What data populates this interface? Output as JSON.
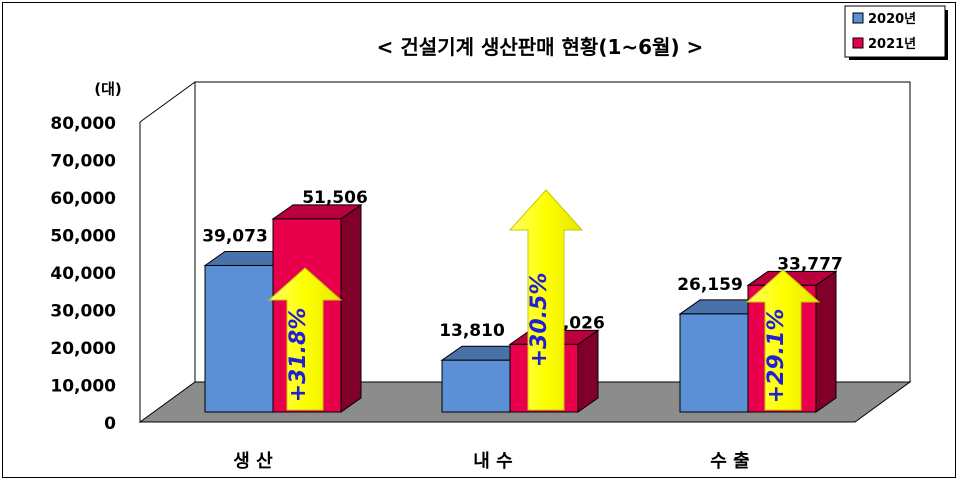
{
  "chart_data": {
    "type": "bar",
    "title": "< 건설기계 생산판매 현황(1~6월) >",
    "ylabel": "(대)",
    "ylim": [
      0,
      80000
    ],
    "yticks": [
      "80,000",
      "70,000",
      "60,000",
      "50,000",
      "40,000",
      "30,000",
      "20,000",
      "10,000",
      "0"
    ],
    "categories": [
      "생 산",
      "내 수",
      "수 출"
    ],
    "series": [
      {
        "name": "2020년",
        "color": "#5b8fd6",
        "values": [
          39073,
          13810,
          26159
        ],
        "labels": [
          "39,073",
          "13,810",
          "26,159"
        ]
      },
      {
        "name": "2021년",
        "color": "#e8004c",
        "values": [
          51506,
          18026,
          33777
        ],
        "labels": [
          "51,506",
          "18,026",
          "33,777"
        ]
      }
    ],
    "growth": [
      "+31.8%",
      "+30.5%",
      "+29.1%"
    ],
    "legend": "top-right",
    "grid": false
  }
}
